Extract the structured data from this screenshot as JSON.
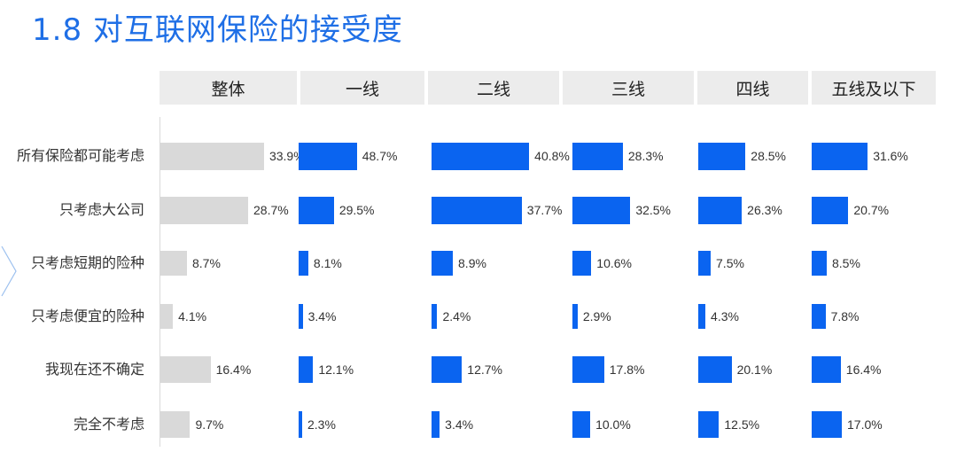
{
  "title": "1.8 对互联网保险的接受度",
  "colors": {
    "title": "#1f6fe6",
    "overall_bar": "#d9d9d9",
    "tier_bar": "#0a64f0",
    "header_bg": "#ececec"
  },
  "chart_data": {
    "type": "bar",
    "orientation": "horizontal",
    "title": "1.8 对互联网保险的接受度",
    "categories": [
      "所有保险都可能考虑",
      "只考虑大公司",
      "只考虑短期的险种",
      "只考虑便宜的险种",
      "我现在还不确定",
      "完全不考虑"
    ],
    "series": [
      {
        "name": "整体",
        "values": [
          33.9,
          28.7,
          8.7,
          4.1,
          16.4,
          9.7
        ],
        "labels": [
          "33.9%",
          "28.7%",
          "8.7%",
          "4.1%",
          "16.4%",
          "9.7%"
        ]
      },
      {
        "name": "一线",
        "values": [
          48.7,
          29.5,
          8.1,
          3.4,
          12.1,
          2.3
        ],
        "labels": [
          "48.7%",
          "29.5%",
          "8.1%",
          "3.4%",
          "12.1%",
          "2.3%"
        ]
      },
      {
        "name": "二线",
        "values": [
          40.8,
          37.7,
          8.9,
          2.4,
          12.7,
          3.4
        ],
        "labels": [
          "40.8%",
          "37.7%",
          "8.9%",
          "2.4%",
          "12.7%",
          "3.4%"
        ]
      },
      {
        "name": "三线",
        "values": [
          28.3,
          32.5,
          10.6,
          2.9,
          17.8,
          10.0
        ],
        "labels": [
          "28.3%",
          "32.5%",
          "10.6%",
          "2.9%",
          "17.8%",
          "10.0%"
        ]
      },
      {
        "name": "四线",
        "values": [
          28.5,
          26.3,
          7.5,
          4.3,
          20.1,
          12.5
        ],
        "labels": [
          "28.5%",
          "26.3%",
          "7.5%",
          "4.3%",
          "20.1%",
          "12.5%"
        ]
      },
      {
        "name": "五线及以下",
        "values": [
          31.6,
          20.7,
          8.5,
          7.8,
          16.4,
          17.0
        ],
        "labels": [
          "31.6%",
          "20.7%",
          "8.5%",
          "7.8%",
          "16.4%",
          "17.0%"
        ]
      }
    ],
    "grid": false,
    "legend": "none"
  }
}
